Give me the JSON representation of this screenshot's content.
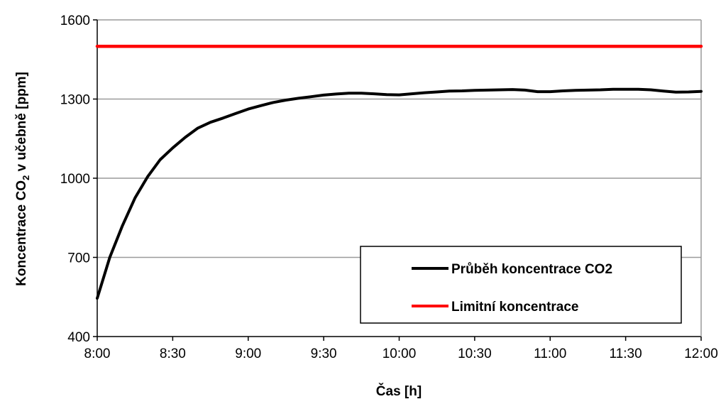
{
  "chart_data": {
    "type": "line",
    "xlabel": "Čas [h]",
    "ylabel_main": "Koncentrace CO",
    "ylabel_sub": "2",
    "ylabel_rest": " v učebně [ppm]",
    "ylim": [
      400,
      1600
    ],
    "yticks": [
      "400",
      "700",
      "1000",
      "1300",
      "1600"
    ],
    "xticks": [
      "8:00",
      "8:30",
      "9:00",
      "9:30",
      "10:00",
      "10:30",
      "11:00",
      "11:30",
      "12:00"
    ],
    "grid": "horizontal",
    "legend_position": "bottom-right",
    "series": [
      {
        "name": "Průběh koncentrace CO2",
        "color": "#000000",
        "x_minutes_labels": "time",
        "points": [
          [
            "8:00",
            545
          ],
          [
            "8:05",
            700
          ],
          [
            "8:10",
            820
          ],
          [
            "8:15",
            925
          ],
          [
            "8:20",
            1005
          ],
          [
            "8:25",
            1070
          ],
          [
            "8:30",
            1115
          ],
          [
            "8:35",
            1155
          ],
          [
            "8:40",
            1190
          ],
          [
            "8:45",
            1212
          ],
          [
            "8:50",
            1228
          ],
          [
            "8:55",
            1245
          ],
          [
            "9:00",
            1262
          ],
          [
            "9:05",
            1275
          ],
          [
            "9:10",
            1287
          ],
          [
            "9:15",
            1296
          ],
          [
            "9:20",
            1303
          ],
          [
            "9:25",
            1309
          ],
          [
            "9:30",
            1315
          ],
          [
            "9:35",
            1319
          ],
          [
            "9:40",
            1322
          ],
          [
            "9:45",
            1322
          ],
          [
            "9:50",
            1320
          ],
          [
            "9:55",
            1317
          ],
          [
            "10:00",
            1316
          ],
          [
            "10:05",
            1320
          ],
          [
            "10:10",
            1324
          ],
          [
            "10:15",
            1327
          ],
          [
            "10:20",
            1330
          ],
          [
            "10:25",
            1331
          ],
          [
            "10:30",
            1333
          ],
          [
            "10:35",
            1334
          ],
          [
            "10:40",
            1335
          ],
          [
            "10:45",
            1336
          ],
          [
            "10:50",
            1334
          ],
          [
            "10:55",
            1328
          ],
          [
            "11:00",
            1328
          ],
          [
            "11:05",
            1331
          ],
          [
            "11:10",
            1333
          ],
          [
            "11:15",
            1334
          ],
          [
            "11:20",
            1335
          ],
          [
            "11:25",
            1337
          ],
          [
            "11:30",
            1337
          ],
          [
            "11:35",
            1337
          ],
          [
            "11:40",
            1335
          ],
          [
            "11:45",
            1330
          ],
          [
            "11:50",
            1326
          ],
          [
            "11:55",
            1327
          ],
          [
            "12:00",
            1329
          ]
        ]
      },
      {
        "name": "Limitní koncentrace",
        "color": "#ff0000",
        "points": [
          [
            "8:00",
            1500
          ],
          [
            "12:00",
            1500
          ]
        ]
      }
    ]
  }
}
